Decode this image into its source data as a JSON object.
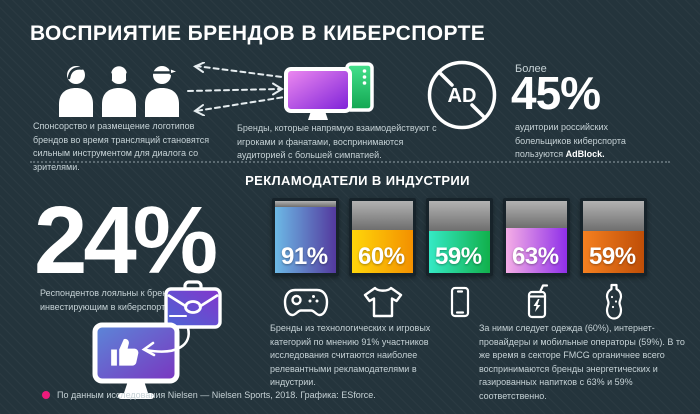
{
  "title": "ВОСПРИЯТИЕ БРЕНДОВ В КИБЕРСПОРТЕ",
  "top": {
    "sponsorship_caption": "Спонсорство и размещение логотипов брендов во время трансляций становятся сильным инструментом для диалога со зрителями.",
    "interaction_caption": "Бренды, которые напрямую взаимодействуют с игроками и фанатами, воспринимаются аудиторией с большей симпатией.",
    "adblock": {
      "badge": "AD",
      "lead": "Более",
      "stat": "45%",
      "caption": "аудитории российских болельщиков киберспорта пользуются",
      "caption_bold": "AdBlock."
    }
  },
  "advertisers": {
    "heading": "РЕКЛАМОДАТЕЛИ В ИНДУСТРИИ",
    "loyalty_stat": "24%",
    "loyalty_caption": "Респондентов лояльны к брендам, инвестирующим в киберспорт.",
    "note_left": "Бренды из технологических и игровых категорий по мнению 91% участников исследования считаются наиболее релевантными рекламодателями в индустрии.",
    "note_right": "За ними следует одежда (60%), интернет-провайдеры и мобильные операторы (59%). В то же время в секторе FMCG органичнее всего воспринимаются бренды энергетических и газированных напитков с 63% и 59% соответственно."
  },
  "footer": {
    "text": "По данным исследования Nielsen — Nielsen Sports, 2018. Графика: ESforce."
  },
  "colors": {
    "background": "#24343c",
    "accent_pink": "#ec1a7b",
    "caption_text": "#c6d2d6",
    "bar_remainder_gray": "#9e9e9e"
  },
  "chart_data": {
    "type": "bar",
    "title": "РЕКЛАМОДАТЕЛИ В ИНДУСТРИИ",
    "categories": [
      "Технологические и игровые бренды",
      "Одежда",
      "Интернет-провайдеры и мобильные операторы",
      "Энергетические напитки",
      "Газированные напитки"
    ],
    "values": [
      91,
      60,
      59,
      63,
      59
    ],
    "labels": [
      "91%",
      "60%",
      "59%",
      "63%",
      "59%"
    ],
    "unit": "%",
    "ylim": [
      0,
      100
    ],
    "legend": "none",
    "icons": [
      "gamepad-icon",
      "tshirt-icon",
      "smartphone-icon",
      "energy-drink-icon",
      "soda-bottle-icon"
    ],
    "bar_colors": [
      [
        "#6cb9e6",
        "#53399e"
      ],
      [
        "#ffd60a",
        "#f39000"
      ],
      [
        "#35e9c5",
        "#11b04b"
      ],
      [
        "#f5aee6",
        "#8f2fe8"
      ],
      [
        "#f58020",
        "#bf4e07"
      ]
    ]
  }
}
